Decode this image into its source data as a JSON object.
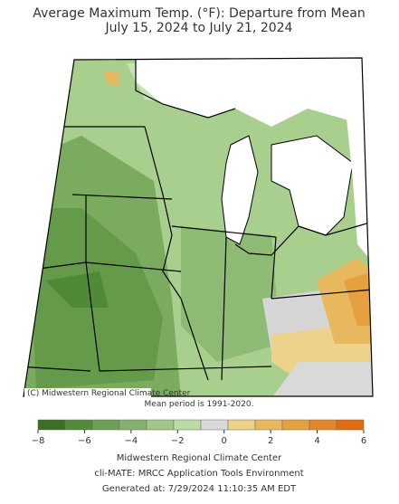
{
  "title": "Average Maximum Temp. (°F): Departure from Mean",
  "subtitle": "July 15, 2024 to July 21, 2024",
  "copyright": "(C) Midwestern Regional Climate Center",
  "note": "Mean period is 1991-2020.",
  "colorbar": {
    "range": [
      -8,
      6
    ],
    "ticks": [
      {
        "value": -8,
        "label": "−8"
      },
      {
        "value": -6,
        "label": "−6"
      },
      {
        "value": -4,
        "label": "−4"
      },
      {
        "value": -2,
        "label": "−2"
      },
      0,
      2,
      4,
      6
    ],
    "colors": [
      "#3d6e28",
      "#558a3a",
      "#6f9e57",
      "#87b070",
      "#a0c68a",
      "#b9dca5",
      "#d9d9d9",
      "#ecd28a",
      "#e8b85e",
      "#e5a040",
      "#e2862a",
      "#e06c10"
    ]
  },
  "footer": [
    "Midwestern Regional Climate Center",
    "cli-MATE: MRCC Application Tools Environment",
    "Generated at: 7/29/2024 11:10:35 AM EDT"
  ]
}
